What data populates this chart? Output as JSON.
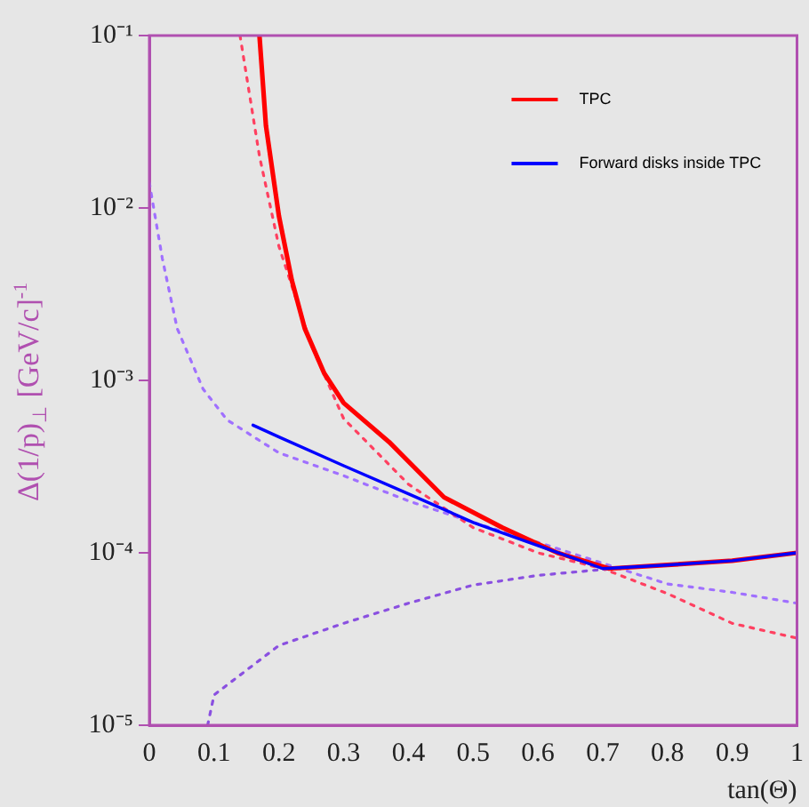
{
  "chart_data": {
    "type": "line",
    "xlabel": "tan(Θ)",
    "ylabel": "Δ(1/p)$_{⊥}$ [GeV/c]$^{-1}$",
    "log": "y",
    "xlim": [
      0,
      1
    ],
    "ylim": [
      1e-05,
      0.1
    ],
    "xticks": [
      0,
      0.1,
      0.2,
      0.3,
      0.4,
      0.5,
      0.6,
      0.7,
      0.8,
      0.9,
      1
    ],
    "yticks": [
      {
        "value": 1e-05,
        "label": "10⁻⁵"
      },
      {
        "value": 0.0001,
        "label": "10⁻⁴"
      },
      {
        "value": 0.001,
        "label": "10⁻³"
      },
      {
        "value": 0.01,
        "label": "10⁻²"
      },
      {
        "value": 0.1,
        "label": "10⁻¹"
      }
    ],
    "grid": false,
    "legend": "top right",
    "marker": "none",
    "series": [
      {
        "name": "TPC",
        "color": "#ff0000",
        "line_style": "solid",
        "x": [
          0.17,
          0.18,
          0.2,
          0.22,
          0.24,
          0.27,
          0.3,
          0.37,
          0.455,
          0.545,
          0.63,
          0.71,
          0.8,
          0.9,
          1.0
        ],
        "values": [
          0.1,
          0.03,
          0.009,
          0.0038,
          0.002,
          0.0011,
          0.00074,
          0.00044,
          0.00021,
          0.00014,
          0.0001,
          8.1e-05,
          8.5e-05,
          9e-05,
          0.0001
        ]
      },
      {
        "name": "Forward disks inside TPC",
        "color": "#0000ff",
        "line_style": "solid",
        "x": [
          0.16,
          0.2,
          0.3,
          0.4,
          0.5,
          0.6,
          0.7,
          0.8,
          0.9,
          1.0
        ],
        "values": [
          0.00055,
          0.00047,
          0.00032,
          0.00022,
          0.00015,
          0.00011,
          8.1e-05,
          8.5e-05,
          9e-05,
          0.0001
        ]
      },
      {
        "color": "#ff4060",
        "line_style": "dotted",
        "x": [
          0.14,
          0.17,
          0.2,
          0.25,
          0.3,
          0.4,
          0.5,
          0.6,
          0.7,
          0.8,
          0.9,
          1.0
        ],
        "values": [
          0.1,
          0.02,
          0.006,
          0.0016,
          0.0006,
          0.00025,
          0.00014,
          0.0001,
          8.1e-05,
          5.8e-05,
          3.9e-05,
          3.2e-05
        ]
      },
      {
        "color": "#a070ff",
        "line_style": "dotted",
        "x": [
          0,
          0.02,
          0.043,
          0.083,
          0.12,
          0.2,
          0.3,
          0.4,
          0.5,
          0.6,
          0.7,
          0.8,
          0.9,
          1.0
        ],
        "values": [
          0.014,
          0.0051,
          0.002,
          0.00089,
          0.00059,
          0.00038,
          0.00028,
          0.0002,
          0.00015,
          0.000115,
          8.7e-05,
          6.6e-05,
          5.9e-05,
          5.1e-05
        ]
      },
      {
        "color": "#8a50e0",
        "line_style": "dotted",
        "x": [
          0.09,
          0.1,
          0.2,
          0.3,
          0.4,
          0.5,
          0.6,
          0.7,
          0.8,
          0.9,
          1.0
        ],
        "values": [
          1e-05,
          1.5e-05,
          2.9e-05,
          3.9e-05,
          5.1e-05,
          6.5e-05,
          7.4e-05,
          8e-05,
          8.5e-05,
          9e-05,
          0.0001
        ]
      }
    ]
  }
}
